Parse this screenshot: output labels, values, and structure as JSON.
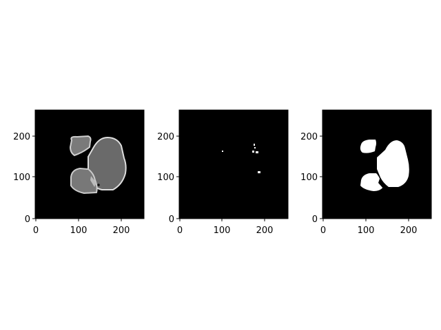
{
  "panels": [
    {
      "id": "panel-1",
      "kind": "grayscale",
      "x_ticks": [
        "0",
        "100",
        "200"
      ],
      "y_ticks": [
        "200",
        "100",
        "0"
      ]
    },
    {
      "id": "panel-2",
      "kind": "sparse-mask",
      "x_ticks": [
        "0",
        "100",
        "200"
      ],
      "y_ticks": [
        "200",
        "100",
        "0"
      ]
    },
    {
      "id": "panel-3",
      "kind": "binary-mask",
      "x_ticks": [
        "0",
        "100",
        "200"
      ],
      "y_ticks": [
        "200",
        "100",
        "0"
      ]
    }
  ],
  "colors": {
    "background": "#000000",
    "tissue_gray": "#6a6a6a",
    "tissue_light": "#9a9a9a",
    "edge_bright": "#d8d8d8",
    "mask_white": "#ffffff"
  }
}
